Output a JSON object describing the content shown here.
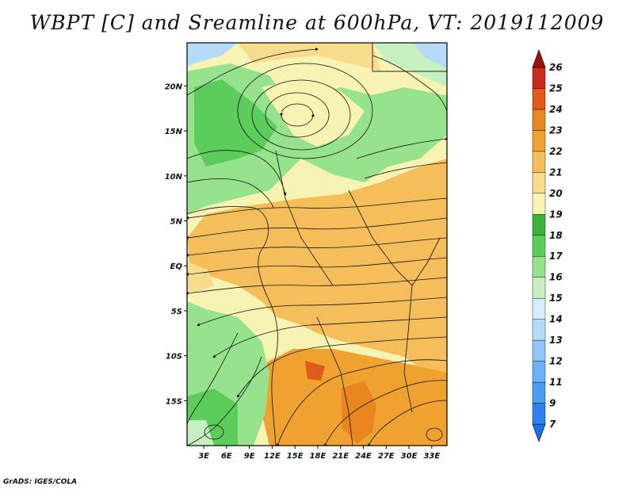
{
  "title": "WBPT [C] and Sreamline at 600hPa, VT: 2019112009",
  "footer": "GrADS: IGES/COLA",
  "map": {
    "lat_labels": [
      "20N",
      "15N",
      "10N",
      "5N",
      "EQ",
      "5S",
      "10S",
      "15S"
    ],
    "lat_values": [
      20,
      15,
      10,
      5,
      0,
      -5,
      -10,
      -15
    ],
    "lon_labels": [
      "3E",
      "6E",
      "9E",
      "12E",
      "15E",
      "18E",
      "21E",
      "24E",
      "27E",
      "30E",
      "33E"
    ],
    "lon_values": [
      3,
      6,
      9,
      12,
      15,
      18,
      21,
      24,
      27,
      30,
      33
    ],
    "lon_range": [
      0.8,
      35.0
    ],
    "lat_range": [
      -20.0,
      24.8
    ]
  },
  "colorbar": {
    "labels": [
      "7",
      "9",
      "11",
      "12",
      "13",
      "14",
      "15",
      "16",
      "17",
      "18",
      "19",
      "20",
      "21",
      "22",
      "23",
      "24",
      "25",
      "26"
    ],
    "colors": [
      "#1e6ee6",
      "#2f82ee",
      "#4d9cf4",
      "#6cb2f7",
      "#8fc8f8",
      "#b4dcf9",
      "#d6eefb",
      "#c6f0c0",
      "#97e28d",
      "#5ccc5a",
      "#3bb33b",
      "#f7f3b3",
      "#f6dc8c",
      "#f5be5a",
      "#f0a231",
      "#ea8620",
      "#e2591c",
      "#cc2a1a",
      "#a00e10"
    ]
  }
}
